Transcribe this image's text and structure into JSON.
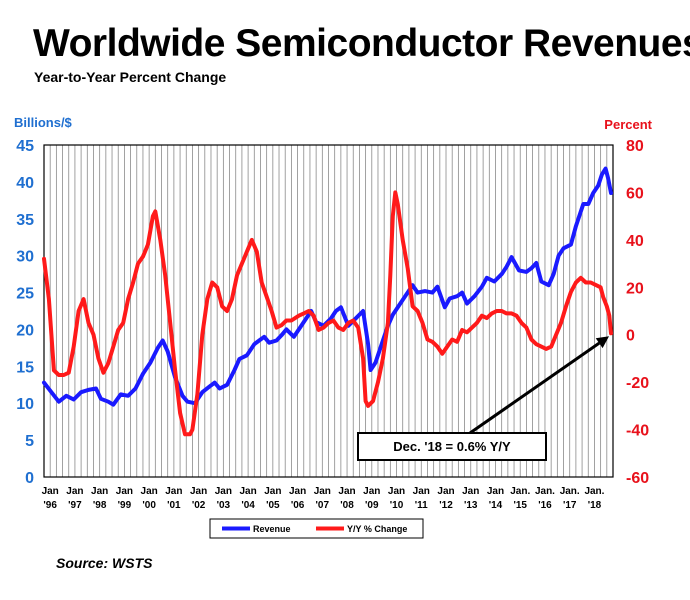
{
  "title": "Worldwide Semiconductor Revenues",
  "subtitle": "Year-to-Year Percent Change",
  "source": "Source: WSTS",
  "annotation": "Dec. '18 = 0.6% Y/Y",
  "colors": {
    "revenue": "#1a1aff",
    "yoy": "#ff1a1a",
    "left_axis": "#1f6fd0",
    "right_axis": "#e8111b"
  },
  "chart_data": {
    "type": "line",
    "x_unit": "year (fractional, Jan 1996 = 1996.0)",
    "left_axis": {
      "label": "Billions/$",
      "min": 0,
      "max": 45,
      "ticks": [
        0,
        5,
        10,
        15,
        20,
        25,
        30,
        35,
        40,
        45
      ]
    },
    "right_axis": {
      "label": "Percent",
      "min": -60,
      "max": 80,
      "ticks": [
        -60,
        -40,
        -20,
        0,
        20,
        40,
        60,
        80
      ]
    },
    "x_ticks": [
      {
        "x": 1996,
        "top": "Jan",
        "bottom": "'96"
      },
      {
        "x": 1997,
        "top": "Jan",
        "bottom": "'97"
      },
      {
        "x": 1998,
        "top": "Jan",
        "bottom": "'98"
      },
      {
        "x": 1999,
        "top": "Jan",
        "bottom": "'99"
      },
      {
        "x": 2000,
        "top": "Jan",
        "bottom": "'00"
      },
      {
        "x": 2001,
        "top": "Jan",
        "bottom": "'01"
      },
      {
        "x": 2002,
        "top": "Jan",
        "bottom": "'02"
      },
      {
        "x": 2003,
        "top": "Jan",
        "bottom": "'03"
      },
      {
        "x": 2004,
        "top": "Jan",
        "bottom": "'04"
      },
      {
        "x": 2005,
        "top": "Jan",
        "bottom": "'05"
      },
      {
        "x": 2006,
        "top": "Jan",
        "bottom": "'06"
      },
      {
        "x": 2007,
        "top": "Jan",
        "bottom": "'07"
      },
      {
        "x": 2008,
        "top": "Jan",
        "bottom": "'08"
      },
      {
        "x": 2009,
        "top": "Jan",
        "bottom": "'09"
      },
      {
        "x": 2010,
        "top": "Jan",
        "bottom": "'10"
      },
      {
        "x": 2011,
        "top": "Jan",
        "bottom": "'11"
      },
      {
        "x": 2012,
        "top": "Jan",
        "bottom": "'12"
      },
      {
        "x": 2013,
        "top": "Jan",
        "bottom": "'13"
      },
      {
        "x": 2014,
        "top": "Jan",
        "bottom": "'14"
      },
      {
        "x": 2015,
        "top": "Jan.",
        "bottom": "'15"
      },
      {
        "x": 2016,
        "top": "Jan.",
        "bottom": "'16"
      },
      {
        "x": 2017,
        "top": "Jan.",
        "bottom": "'17"
      },
      {
        "x": 2018,
        "top": "Jan.",
        "bottom": "'18"
      }
    ],
    "series": [
      {
        "name": "Revenue",
        "axis": "left",
        "points": [
          [
            1996.0,
            12.8
          ],
          [
            1996.3,
            11.5
          ],
          [
            1996.6,
            10.2
          ],
          [
            1996.9,
            11.0
          ],
          [
            1997.2,
            10.5
          ],
          [
            1997.5,
            11.5
          ],
          [
            1997.8,
            11.8
          ],
          [
            1998.1,
            12.0
          ],
          [
            1998.3,
            10.6
          ],
          [
            1998.6,
            10.2
          ],
          [
            1998.8,
            9.8
          ],
          [
            1999.1,
            11.2
          ],
          [
            1999.4,
            11.0
          ],
          [
            1999.7,
            12.0
          ],
          [
            2000.0,
            14.0
          ],
          [
            2000.3,
            15.5
          ],
          [
            2000.6,
            17.5
          ],
          [
            2000.8,
            18.5
          ],
          [
            2001.0,
            17.0
          ],
          [
            2001.3,
            13.5
          ],
          [
            2001.6,
            11.0
          ],
          [
            2001.8,
            10.2
          ],
          [
            2002.1,
            10.0
          ],
          [
            2002.4,
            11.5
          ],
          [
            2002.7,
            12.3
          ],
          [
            2002.9,
            12.8
          ],
          [
            2003.1,
            12.0
          ],
          [
            2003.4,
            12.5
          ],
          [
            2003.7,
            14.5
          ],
          [
            2003.9,
            16.0
          ],
          [
            2004.2,
            16.5
          ],
          [
            2004.5,
            18.0
          ],
          [
            2004.7,
            18.5
          ],
          [
            2004.9,
            19.0
          ],
          [
            2005.1,
            18.2
          ],
          [
            2005.4,
            18.5
          ],
          [
            2005.6,
            19.2
          ],
          [
            2005.8,
            20.0
          ],
          [
            2006.1,
            19.0
          ],
          [
            2006.4,
            20.5
          ],
          [
            2006.6,
            21.5
          ],
          [
            2006.8,
            22.5
          ],
          [
            2007.0,
            21.0
          ],
          [
            2007.3,
            20.5
          ],
          [
            2007.6,
            21.5
          ],
          [
            2007.8,
            22.5
          ],
          [
            2008.0,
            23.0
          ],
          [
            2008.3,
            20.5
          ],
          [
            2008.6,
            21.5
          ],
          [
            2008.9,
            22.5
          ],
          [
            2009.1,
            18.0
          ],
          [
            2009.2,
            14.5
          ],
          [
            2009.4,
            15.5
          ],
          [
            2009.7,
            18.5
          ],
          [
            2009.9,
            20.5
          ],
          [
            2010.1,
            22.0
          ],
          [
            2010.3,
            23.0
          ],
          [
            2010.6,
            24.5
          ],
          [
            2010.9,
            26.0
          ],
          [
            2011.1,
            25.0
          ],
          [
            2011.4,
            25.2
          ],
          [
            2011.7,
            25.0
          ],
          [
            2011.9,
            25.8
          ],
          [
            2012.2,
            23.0
          ],
          [
            2012.4,
            24.2
          ],
          [
            2012.7,
            24.5
          ],
          [
            2012.9,
            25.0
          ],
          [
            2013.1,
            23.5
          ],
          [
            2013.4,
            24.5
          ],
          [
            2013.7,
            25.8
          ],
          [
            2013.9,
            27.0
          ],
          [
            2014.2,
            26.5
          ],
          [
            2014.5,
            27.5
          ],
          [
            2014.7,
            28.5
          ],
          [
            2014.9,
            29.8
          ],
          [
            2015.2,
            28.0
          ],
          [
            2015.5,
            27.8
          ],
          [
            2015.7,
            28.3
          ],
          [
            2015.9,
            29.0
          ],
          [
            2016.1,
            26.5
          ],
          [
            2016.4,
            26.0
          ],
          [
            2016.6,
            27.5
          ],
          [
            2016.8,
            30.0
          ],
          [
            2017.0,
            31.0
          ],
          [
            2017.3,
            31.5
          ],
          [
            2017.5,
            34.0
          ],
          [
            2017.8,
            37.0
          ],
          [
            2018.0,
            37.0
          ],
          [
            2018.2,
            38.5
          ],
          [
            2018.4,
            39.5
          ],
          [
            2018.55,
            41.0
          ],
          [
            2018.7,
            41.8
          ],
          [
            2018.8,
            40.5
          ],
          [
            2018.92,
            38.5
          ]
        ]
      },
      {
        "name": "Y/Y % Change",
        "axis": "right",
        "points": [
          [
            1996.0,
            32
          ],
          [
            1996.2,
            15
          ],
          [
            1996.4,
            -15
          ],
          [
            1996.6,
            -17
          ],
          [
            1996.8,
            -17
          ],
          [
            1997.0,
            -16
          ],
          [
            1997.2,
            -5
          ],
          [
            1997.4,
            10
          ],
          [
            1997.6,
            15
          ],
          [
            1997.8,
            5
          ],
          [
            1998.0,
            0
          ],
          [
            1998.2,
            -10
          ],
          [
            1998.4,
            -16
          ],
          [
            1998.6,
            -12
          ],
          [
            1998.8,
            -5
          ],
          [
            1999.0,
            2
          ],
          [
            1999.2,
            5
          ],
          [
            1999.4,
            15
          ],
          [
            1999.6,
            22
          ],
          [
            1999.8,
            30
          ],
          [
            2000.0,
            33
          ],
          [
            2000.2,
            38
          ],
          [
            2000.4,
            50
          ],
          [
            2000.5,
            52
          ],
          [
            2000.7,
            40
          ],
          [
            2000.9,
            25
          ],
          [
            2001.1,
            5
          ],
          [
            2001.3,
            -15
          ],
          [
            2001.5,
            -33
          ],
          [
            2001.7,
            -42
          ],
          [
            2001.9,
            -42
          ],
          [
            2002.0,
            -40
          ],
          [
            2002.2,
            -25
          ],
          [
            2002.4,
            0
          ],
          [
            2002.6,
            15
          ],
          [
            2002.8,
            22
          ],
          [
            2003.0,
            20
          ],
          [
            2003.2,
            12
          ],
          [
            2003.4,
            10
          ],
          [
            2003.6,
            15
          ],
          [
            2003.8,
            25
          ],
          [
            2004.0,
            30
          ],
          [
            2004.2,
            35
          ],
          [
            2004.4,
            40
          ],
          [
            2004.6,
            35
          ],
          [
            2004.8,
            22
          ],
          [
            2005.0,
            16
          ],
          [
            2005.2,
            10
          ],
          [
            2005.4,
            3
          ],
          [
            2005.6,
            4
          ],
          [
            2005.8,
            6
          ],
          [
            2006.0,
            6
          ],
          [
            2006.3,
            8
          ],
          [
            2006.5,
            9
          ],
          [
            2006.7,
            10
          ],
          [
            2006.9,
            8
          ],
          [
            2007.1,
            2
          ],
          [
            2007.3,
            3
          ],
          [
            2007.5,
            5
          ],
          [
            2007.7,
            6
          ],
          [
            2007.9,
            3
          ],
          [
            2008.1,
            2
          ],
          [
            2008.3,
            5
          ],
          [
            2008.5,
            6
          ],
          [
            2008.7,
            3
          ],
          [
            2008.9,
            -10
          ],
          [
            2009.0,
            -28
          ],
          [
            2009.1,
            -30
          ],
          [
            2009.3,
            -28
          ],
          [
            2009.5,
            -20
          ],
          [
            2009.7,
            -10
          ],
          [
            2009.9,
            5
          ],
          [
            2010.0,
            25
          ],
          [
            2010.1,
            50
          ],
          [
            2010.2,
            60
          ],
          [
            2010.3,
            55
          ],
          [
            2010.5,
            40
          ],
          [
            2010.7,
            28
          ],
          [
            2010.9,
            12
          ],
          [
            2011.1,
            10
          ],
          [
            2011.3,
            5
          ],
          [
            2011.5,
            -2
          ],
          [
            2011.7,
            -3
          ],
          [
            2011.9,
            -5
          ],
          [
            2012.1,
            -8
          ],
          [
            2012.3,
            -5
          ],
          [
            2012.5,
            -2
          ],
          [
            2012.7,
            -3
          ],
          [
            2012.9,
            2
          ],
          [
            2013.1,
            1
          ],
          [
            2013.3,
            3
          ],
          [
            2013.5,
            5
          ],
          [
            2013.7,
            8
          ],
          [
            2013.9,
            7
          ],
          [
            2014.1,
            9
          ],
          [
            2014.3,
            10
          ],
          [
            2014.5,
            10
          ],
          [
            2014.7,
            9
          ],
          [
            2014.9,
            9
          ],
          [
            2015.1,
            8
          ],
          [
            2015.3,
            5
          ],
          [
            2015.5,
            3
          ],
          [
            2015.7,
            -2
          ],
          [
            2015.9,
            -4
          ],
          [
            2016.1,
            -5
          ],
          [
            2016.3,
            -6
          ],
          [
            2016.5,
            -5
          ],
          [
            2016.7,
            0
          ],
          [
            2016.9,
            5
          ],
          [
            2017.1,
            12
          ],
          [
            2017.3,
            18
          ],
          [
            2017.5,
            22
          ],
          [
            2017.7,
            24
          ],
          [
            2017.9,
            22
          ],
          [
            2018.1,
            22
          ],
          [
            2018.3,
            21
          ],
          [
            2018.5,
            20
          ],
          [
            2018.6,
            16
          ],
          [
            2018.75,
            12
          ],
          [
            2018.85,
            8
          ],
          [
            2018.92,
            0.6
          ]
        ]
      }
    ],
    "legend": {
      "placement": "bottom-center",
      "entries": [
        "Revenue",
        "Y/Y % Change"
      ]
    },
    "grid": {
      "vertical": true,
      "horizontal": false
    }
  }
}
